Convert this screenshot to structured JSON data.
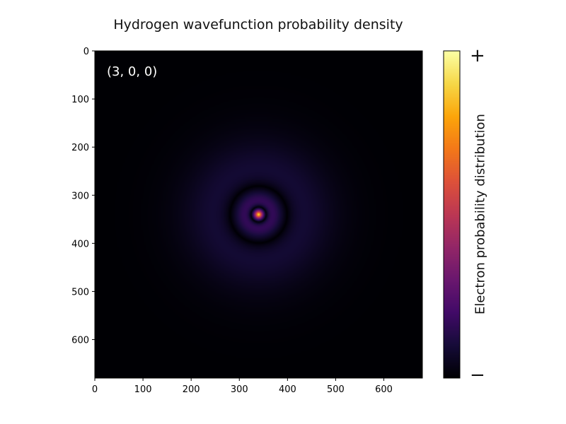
{
  "chart_data": {
    "type": "heatmap",
    "title": "Hydrogen wavefunction probability density",
    "annotation": "(3, 0, 0)",
    "quantum_numbers": {
      "n": 3,
      "l": 0,
      "m": 0
    },
    "image_extent": [
      0,
      680
    ],
    "center": [
      340,
      340
    ],
    "scale_bohr_per_unit": 0.12,
    "x_ticks": [
      0,
      100,
      200,
      300,
      400,
      500,
      600
    ],
    "y_ticks": [
      0,
      100,
      200,
      300,
      400,
      500,
      600
    ],
    "xlim": [
      0,
      680
    ],
    "ylim": [
      680,
      0
    ],
    "y_inverted": true,
    "colormap": "inferno",
    "colorbar": {
      "label": "Electron probability distribution",
      "top_label": "+",
      "bottom_label": "−"
    },
    "grid": false
  }
}
